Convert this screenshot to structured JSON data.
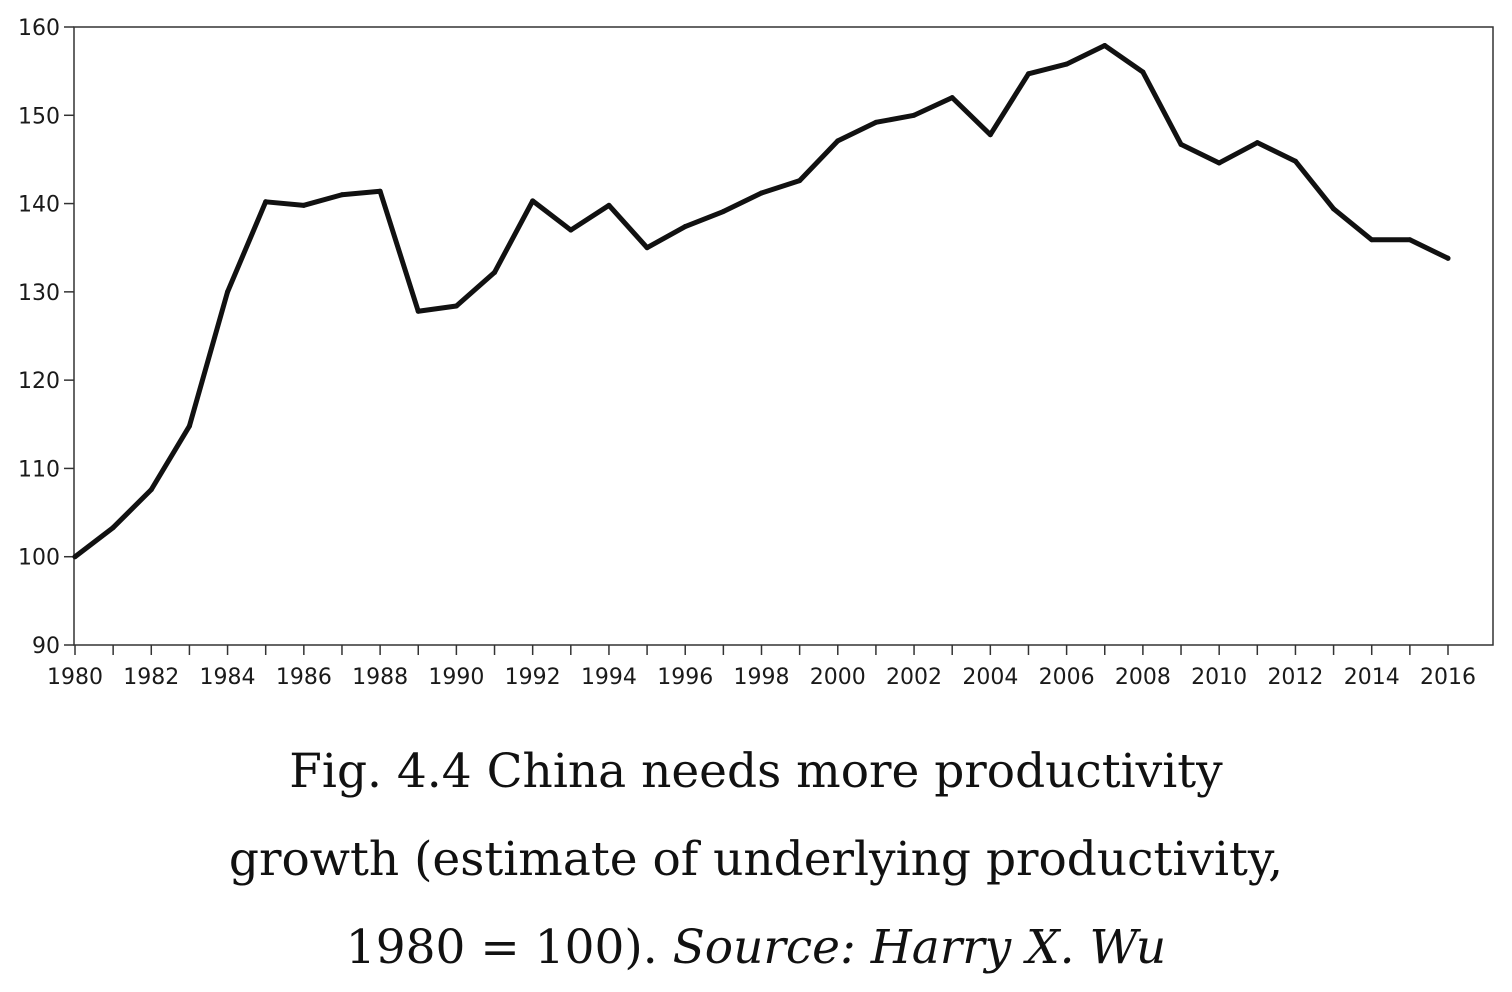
{
  "chart_data": {
    "type": "line",
    "title": "",
    "xlabel": "",
    "ylabel": "",
    "xlim": [
      1980,
      2016
    ],
    "ylim": [
      90,
      160
    ],
    "yticks": [
      90,
      100,
      110,
      120,
      130,
      140,
      150,
      160
    ],
    "xtick_labels": [
      "1980",
      "1982",
      "1984",
      "1986",
      "1988",
      "1990",
      "1992",
      "1994",
      "1996",
      "1998",
      "2000",
      "2002",
      "2004",
      "2006",
      "2008",
      "2010",
      "2012",
      "2014",
      "2016"
    ],
    "grid": false,
    "line_color": "#111111",
    "series": [
      {
        "x": [
          1980,
          1981,
          1982,
          1983,
          1984,
          1985,
          1986,
          1987,
          1988,
          1989,
          1990,
          1991,
          1992,
          1993,
          1994,
          1995,
          1996,
          1997,
          1998,
          1999,
          2000,
          2001,
          2002,
          2003,
          2004,
          2005,
          2006,
          2007,
          2008,
          2009,
          2010,
          2011,
          2012,
          2013,
          2014,
          2015,
          2016
        ],
        "values": [
          100,
          103.3,
          107.6,
          114.8,
          130,
          140.2,
          139.8,
          141,
          141.4,
          127.8,
          128.4,
          132.2,
          140.3,
          137,
          139.8,
          135,
          137.4,
          139.1,
          141.2,
          142.6,
          147.1,
          149.2,
          150,
          152,
          147.8,
          154.7,
          155.8,
          157.9,
          154.9,
          146.7,
          144.6,
          146.9,
          144.8,
          139.4,
          135.9,
          135.9,
          133.8
        ]
      }
    ]
  },
  "caption": {
    "line1": "Fig. 4.4 China needs more productivity",
    "line2": "growth (estimate of underlying productivity,",
    "line3_text": "1980 = 100). ",
    "line3_source": "Source: Harry X. Wu"
  }
}
